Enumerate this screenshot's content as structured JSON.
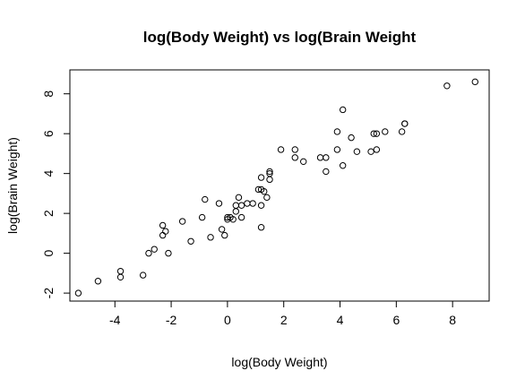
{
  "chart_data": {
    "type": "scatter",
    "title": "log(Body Weight) vs log(Brain Weight",
    "xlabel": "log(Body Weight)",
    "ylabel": "log(Brain Weight)",
    "xlim": [
      -5.6,
      9.3
    ],
    "ylim": [
      -2.4,
      9.2
    ],
    "x_ticks": [
      -4,
      -2,
      0,
      2,
      4,
      6,
      8
    ],
    "y_ticks": [
      -2,
      0,
      2,
      4,
      6,
      8
    ],
    "x_tick_labels": [
      "-4",
      "-2",
      "0",
      "2",
      "4",
      "6",
      "8"
    ],
    "y_tick_labels": [
      "-2",
      "0",
      "2",
      "4",
      "6",
      "8"
    ],
    "grid": false,
    "legend": "none",
    "marker": "open-circle",
    "color": "#000000",
    "points": [
      [
        -5.3,
        -2.0
      ],
      [
        -4.6,
        -1.4
      ],
      [
        -3.8,
        -0.9
      ],
      [
        -3.8,
        -1.2
      ],
      [
        -3.0,
        -1.1
      ],
      [
        -2.8,
        0.0
      ],
      [
        -2.6,
        0.2
      ],
      [
        -2.3,
        1.4
      ],
      [
        -2.3,
        0.9
      ],
      [
        -2.2,
        1.1
      ],
      [
        -2.1,
        0.0
      ],
      [
        -1.6,
        1.6
      ],
      [
        -1.3,
        0.6
      ],
      [
        -0.9,
        1.8
      ],
      [
        -0.8,
        2.7
      ],
      [
        -0.6,
        0.8
      ],
      [
        -0.3,
        2.5
      ],
      [
        -0.2,
        1.2
      ],
      [
        -0.1,
        0.9
      ],
      [
        0.0,
        1.8
      ],
      [
        0.0,
        1.7
      ],
      [
        0.1,
        1.8
      ],
      [
        0.2,
        1.7
      ],
      [
        0.3,
        2.1
      ],
      [
        0.3,
        2.4
      ],
      [
        0.4,
        2.8
      ],
      [
        0.5,
        1.8
      ],
      [
        0.5,
        2.4
      ],
      [
        0.7,
        2.5
      ],
      [
        0.9,
        2.5
      ],
      [
        1.1,
        3.2
      ],
      [
        1.2,
        3.8
      ],
      [
        1.2,
        3.2
      ],
      [
        1.2,
        2.4
      ],
      [
        1.2,
        1.3
      ],
      [
        1.3,
        3.1
      ],
      [
        1.4,
        2.8
      ],
      [
        1.5,
        4.0
      ],
      [
        1.5,
        4.1
      ],
      [
        1.5,
        3.7
      ],
      [
        1.9,
        5.2
      ],
      [
        2.4,
        5.2
      ],
      [
        2.4,
        4.8
      ],
      [
        2.7,
        4.6
      ],
      [
        3.3,
        4.8
      ],
      [
        3.5,
        4.1
      ],
      [
        3.5,
        4.8
      ],
      [
        3.9,
        6.1
      ],
      [
        3.9,
        5.2
      ],
      [
        4.1,
        7.2
      ],
      [
        4.1,
        4.4
      ],
      [
        4.4,
        5.8
      ],
      [
        4.6,
        5.1
      ],
      [
        5.1,
        5.1
      ],
      [
        5.2,
        6.0
      ],
      [
        5.3,
        5.2
      ],
      [
        5.3,
        6.0
      ],
      [
        5.6,
        6.1
      ],
      [
        6.2,
        6.1
      ],
      [
        6.3,
        6.5
      ],
      [
        6.3,
        6.5
      ],
      [
        7.8,
        8.4
      ],
      [
        8.8,
        8.6
      ]
    ]
  }
}
